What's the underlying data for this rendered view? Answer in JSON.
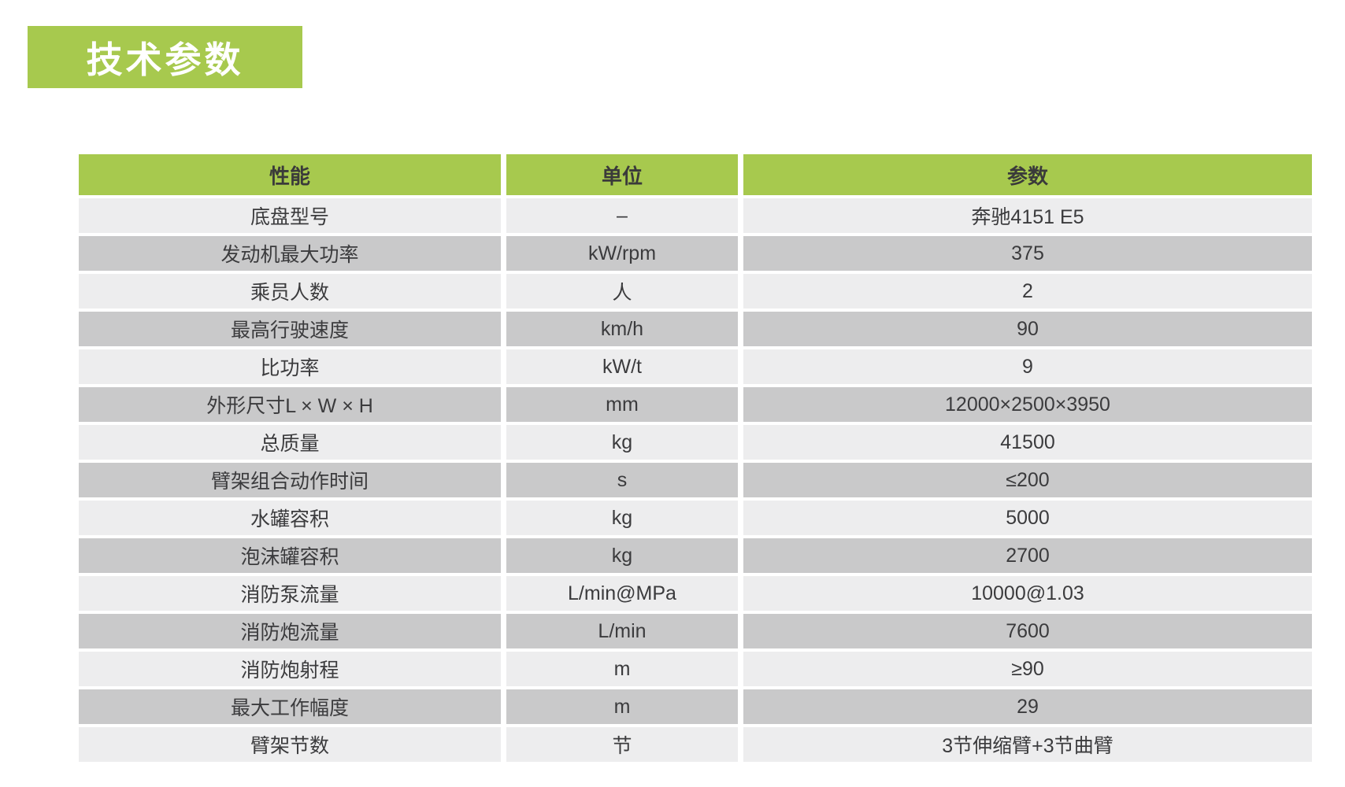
{
  "title": {
    "text": "技术参数",
    "bg_color": "#a7c94e",
    "text_color": "#ffffff"
  },
  "table": {
    "columns": [
      "性能",
      "单位",
      "参数"
    ],
    "header_bg": "#a7c94e",
    "row_light_bg": "#ededee",
    "row_dark_bg": "#c9c9ca",
    "rows": [
      {
        "name": "底盘型号",
        "unit": "–",
        "value": "奔驰4151 E5"
      },
      {
        "name": "发动机最大功率",
        "unit": "kW/rpm",
        "value": "375"
      },
      {
        "name": "乘员人数",
        "unit": "人",
        "value": "2"
      },
      {
        "name": "最高行驶速度",
        "unit": "km/h",
        "value": "90"
      },
      {
        "name": "比功率",
        "unit": "kW/t",
        "value": "9"
      },
      {
        "name": "外形尺寸L × W × H",
        "unit": "mm",
        "value": "12000×2500×3950"
      },
      {
        "name": "总质量",
        "unit": "kg",
        "value": "41500"
      },
      {
        "name": "臂架组合动作时间",
        "unit": "s",
        "value": "≤200"
      },
      {
        "name": "水罐容积",
        "unit": "kg",
        "value": "5000"
      },
      {
        "name": "泡沫罐容积",
        "unit": "kg",
        "value": "2700"
      },
      {
        "name": "消防泵流量",
        "unit": "L/min@MPa",
        "value": "10000@1.03"
      },
      {
        "name": "消防炮流量",
        "unit": "L/min",
        "value": "7600"
      },
      {
        "name": "消防炮射程",
        "unit": "m",
        "value": "≥90"
      },
      {
        "name": "最大工作幅度",
        "unit": "m",
        "value": "29"
      },
      {
        "name": "臂架节数",
        "unit": "节",
        "value": "3节伸缩臂+3节曲臂"
      }
    ]
  }
}
